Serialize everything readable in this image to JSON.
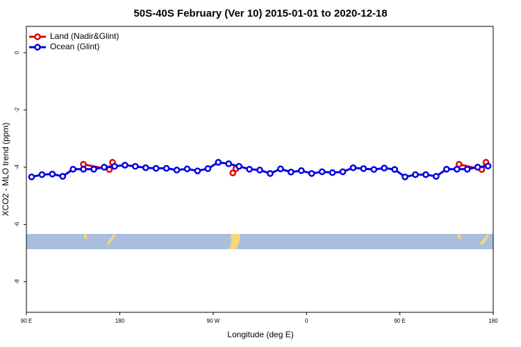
{
  "chart_data": {
    "type": "line",
    "title": "50S-40S February (Ver 10)   2015-01-01 to 2020-12-18",
    "x_label": "Longitude (deg E)",
    "y_label": "XCO2 - MLO trend (ppm)",
    "xlim": [
      90,
      540
    ],
    "xticks": [
      {
        "value": 90,
        "label": "90 E"
      },
      180,
      {
        "value": 270,
        "label": "90 W"
      },
      {
        "value": 360,
        "label": "0"
      },
      {
        "value": 450,
        "label": "90 E"
      },
      {
        "value": 540,
        "label": "180"
      }
    ],
    "ylim": [
      -9.07,
      0.92
    ],
    "yticks": [
      0,
      -2,
      -4,
      -6,
      -8
    ],
    "legend": "top-left",
    "series": [
      {
        "name": "Land (Nadir&Glint)",
        "color": "#e00000",
        "x": [
          145,
          170,
          173,
          null,
          289,
          292,
          null,
          507,
          529,
          533
        ],
        "values": [
          -3.9,
          -4.08,
          -3.83,
          null,
          -4.2,
          -4.05,
          null,
          -3.9,
          -4.08,
          -3.83
        ]
      },
      {
        "name": "Ocean (Glint)",
        "color": "#0000e0",
        "x": [
          95,
          105,
          115,
          125,
          135,
          145,
          155,
          165,
          175,
          185,
          195,
          205,
          215,
          225,
          235,
          245,
          255,
          265,
          275,
          285,
          295,
          305,
          315,
          325,
          335,
          345,
          355,
          365,
          375,
          385,
          395,
          405,
          415,
          425,
          435,
          445,
          455,
          465,
          475,
          485,
          495,
          505,
          515,
          525,
          535
        ],
        "values": [
          -4.34,
          -4.26,
          -4.24,
          -4.32,
          -4.07,
          -4.07,
          -4.07,
          -4.0,
          -3.97,
          -3.93,
          -3.97,
          -4.02,
          -4.04,
          -4.04,
          -4.1,
          -4.06,
          -4.13,
          -4.05,
          -3.83,
          -3.88,
          -3.97,
          -4.07,
          -4.1,
          -4.22,
          -4.06,
          -4.17,
          -4.12,
          -4.22,
          -4.16,
          -4.19,
          -4.16,
          -4.02,
          -4.05,
          -4.08,
          -4.03,
          -4.08,
          -4.34,
          -4.26,
          -4.26,
          -4.32,
          -4.07,
          -4.07,
          -4.07,
          -4.0,
          -3.96
        ]
      }
    ]
  }
}
